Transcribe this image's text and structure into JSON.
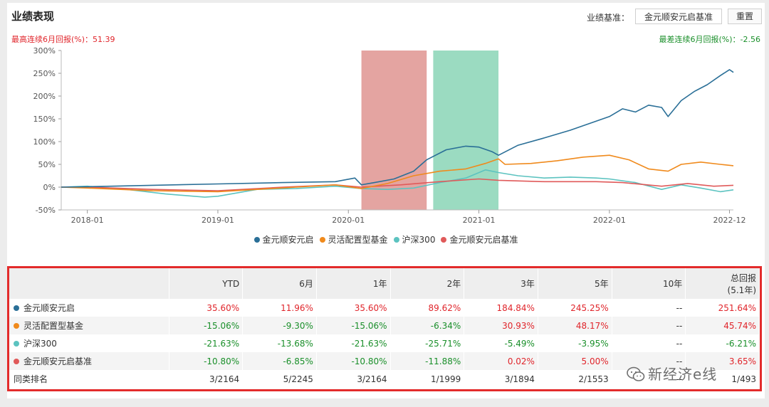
{
  "header": {
    "title": "业绩表现",
    "benchmark_label": "业绩基准：",
    "benchmark_value": "金元顺安元启基准",
    "reset_label": "重置"
  },
  "notes": {
    "max_streak": "最高连续6月回报(%)：51.39",
    "min_streak": "最差连续6月回报(%)：-2.56"
  },
  "colors": {
    "fund": "#2a6f97",
    "category": "#f08a1c",
    "hs300": "#5cc3c0",
    "benchmark": "#e05a5a",
    "band_red": "#dc8a86",
    "band_green": "#7fd1b0"
  },
  "chart_data": {
    "type": "line",
    "x_ticks": [
      "2018-01",
      "2019-01",
      "2020-01",
      "2021-01",
      "2022-01",
      "2022-12"
    ],
    "y_ticks": [
      "300%",
      "250%",
      "200%",
      "150%",
      "100%",
      "50%",
      "0%",
      "-50%"
    ],
    "ylim": [
      -50,
      300
    ],
    "xlim": [
      2017.8,
      2022.95
    ],
    "shaded_ranges": [
      {
        "color": "red",
        "from": 2020.1,
        "to": 2020.6
      },
      {
        "color": "green",
        "from": 2020.65,
        "to": 2021.15
      }
    ],
    "series": [
      {
        "name": "金元顺安元启",
        "key": "fund",
        "points": [
          [
            2017.8,
            0
          ],
          [
            2018.0,
            1
          ],
          [
            2018.5,
            4
          ],
          [
            2019.0,
            7
          ],
          [
            2019.5,
            10
          ],
          [
            2019.9,
            12
          ],
          [
            2020.05,
            20
          ],
          [
            2020.1,
            5
          ],
          [
            2020.2,
            10
          ],
          [
            2020.35,
            18
          ],
          [
            2020.5,
            35
          ],
          [
            2020.6,
            60
          ],
          [
            2020.75,
            82
          ],
          [
            2020.9,
            90
          ],
          [
            2021.0,
            88
          ],
          [
            2021.1,
            78
          ],
          [
            2021.15,
            70
          ],
          [
            2021.3,
            92
          ],
          [
            2021.5,
            108
          ],
          [
            2021.7,
            125
          ],
          [
            2021.85,
            140
          ],
          [
            2022.0,
            155
          ],
          [
            2022.1,
            172
          ],
          [
            2022.2,
            165
          ],
          [
            2022.3,
            180
          ],
          [
            2022.4,
            175
          ],
          [
            2022.45,
            155
          ],
          [
            2022.55,
            190
          ],
          [
            2022.65,
            210
          ],
          [
            2022.75,
            225
          ],
          [
            2022.85,
            245
          ],
          [
            2022.92,
            258
          ],
          [
            2022.95,
            252
          ]
        ]
      },
      {
        "name": "灵活配置型基金",
        "key": "category",
        "points": [
          [
            2017.8,
            0
          ],
          [
            2018.0,
            -2
          ],
          [
            2018.5,
            -8
          ],
          [
            2019.0,
            -10
          ],
          [
            2019.3,
            -5
          ],
          [
            2019.6,
            0
          ],
          [
            2019.9,
            5
          ],
          [
            2020.1,
            -3
          ],
          [
            2020.3,
            8
          ],
          [
            2020.5,
            25
          ],
          [
            2020.7,
            35
          ],
          [
            2020.9,
            40
          ],
          [
            2021.05,
            52
          ],
          [
            2021.15,
            62
          ],
          [
            2021.2,
            50
          ],
          [
            2021.4,
            52
          ],
          [
            2021.6,
            58
          ],
          [
            2021.8,
            66
          ],
          [
            2022.0,
            70
          ],
          [
            2022.15,
            60
          ],
          [
            2022.3,
            40
          ],
          [
            2022.45,
            35
          ],
          [
            2022.55,
            50
          ],
          [
            2022.7,
            55
          ],
          [
            2022.85,
            50
          ],
          [
            2022.95,
            47
          ]
        ]
      },
      {
        "name": "沪深300",
        "key": "hs300",
        "points": [
          [
            2017.8,
            0
          ],
          [
            2018.0,
            2
          ],
          [
            2018.3,
            -5
          ],
          [
            2018.6,
            -15
          ],
          [
            2018.9,
            -22
          ],
          [
            2019.0,
            -20
          ],
          [
            2019.3,
            -5
          ],
          [
            2019.6,
            -3
          ],
          [
            2019.9,
            2
          ],
          [
            2020.1,
            -3
          ],
          [
            2020.3,
            -5
          ],
          [
            2020.5,
            -2
          ],
          [
            2020.7,
            10
          ],
          [
            2020.9,
            20
          ],
          [
            2021.05,
            38
          ],
          [
            2021.15,
            32
          ],
          [
            2021.3,
            25
          ],
          [
            2021.5,
            20
          ],
          [
            2021.7,
            22
          ],
          [
            2021.9,
            20
          ],
          [
            2022.0,
            18
          ],
          [
            2022.2,
            10
          ],
          [
            2022.4,
            -5
          ],
          [
            2022.55,
            5
          ],
          [
            2022.7,
            -2
          ],
          [
            2022.85,
            -10
          ],
          [
            2022.95,
            -6
          ]
        ]
      },
      {
        "name": "金元顺安元启基准",
        "key": "benchmark",
        "points": [
          [
            2017.8,
            0
          ],
          [
            2018.0,
            0
          ],
          [
            2018.5,
            -5
          ],
          [
            2019.0,
            -8
          ],
          [
            2019.5,
            0
          ],
          [
            2019.9,
            5
          ],
          [
            2020.1,
            0
          ],
          [
            2020.4,
            5
          ],
          [
            2020.7,
            12
          ],
          [
            2021.0,
            18
          ],
          [
            2021.15,
            15
          ],
          [
            2021.5,
            12
          ],
          [
            2021.9,
            12
          ],
          [
            2022.1,
            10
          ],
          [
            2022.4,
            2
          ],
          [
            2022.6,
            8
          ],
          [
            2022.8,
            2
          ],
          [
            2022.95,
            4
          ]
        ]
      }
    ]
  },
  "table": {
    "headers": [
      "",
      "YTD",
      "6月",
      "1年",
      "2年",
      "3年",
      "5年",
      "10年",
      "总回报"
    ],
    "total_sub": "(5.1年)",
    "rows": [
      {
        "name": "金元顺安元启",
        "key": "fund",
        "values": [
          "35.60%",
          "11.96%",
          "35.60%",
          "89.62%",
          "184.84%",
          "245.25%",
          "--",
          "251.64%"
        ]
      },
      {
        "name": "灵活配置型基金",
        "key": "category",
        "values": [
          "-15.06%",
          "-9.30%",
          "-15.06%",
          "-6.34%",
          "30.93%",
          "48.17%",
          "--",
          "45.74%"
        ]
      },
      {
        "name": "沪深300",
        "key": "hs300",
        "values": [
          "-21.63%",
          "-13.68%",
          "-21.63%",
          "-25.71%",
          "-5.49%",
          "-3.95%",
          "--",
          "-6.21%"
        ]
      },
      {
        "name": "金元顺安元启基准",
        "key": "benchmark",
        "values": [
          "-10.80%",
          "-6.85%",
          "-10.80%",
          "-11.88%",
          "0.02%",
          "5.00%",
          "--",
          "3.65%"
        ]
      },
      {
        "name": "同类排名",
        "key": "rank",
        "values": [
          "3/2164",
          "5/2245",
          "3/2164",
          "1/1999",
          "3/1894",
          "2/1553",
          "--",
          "1/493"
        ]
      }
    ]
  },
  "watermark": "新经济e线"
}
